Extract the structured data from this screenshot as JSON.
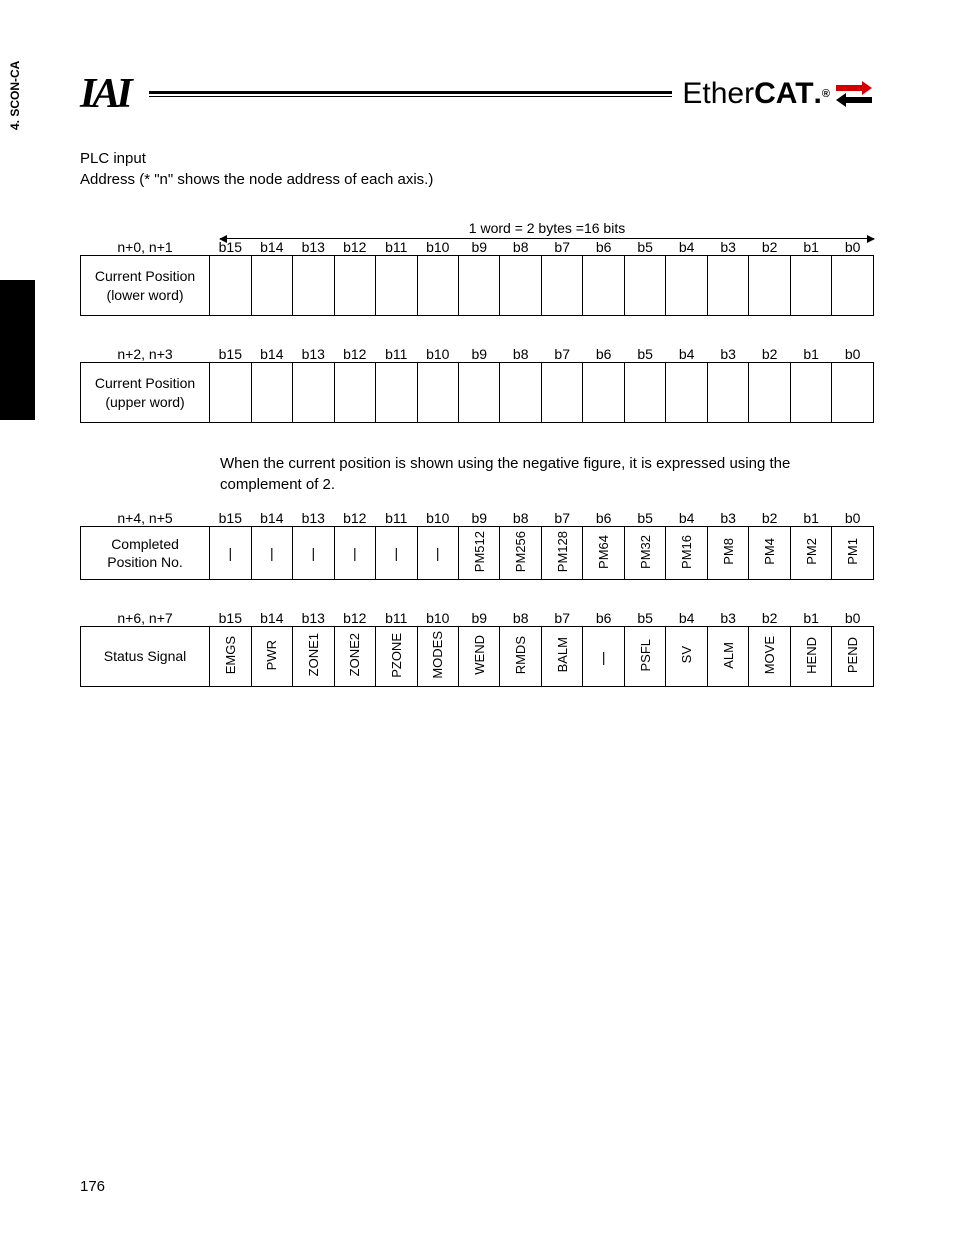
{
  "side_tab": "4. SCON-CA",
  "logos": {
    "iai": "IAI",
    "ethercat_thin": "Ether",
    "ethercat_bold": "CAT",
    "ethercat_dot": "."
  },
  "intro": {
    "line1": "PLC input",
    "line2": "Address (* \"n\" shows the node address of each axis.)"
  },
  "word_caption": "1 word = 2 bytes =16 bits",
  "bits": [
    "b15",
    "b14",
    "b13",
    "b12",
    "b11",
    "b10",
    "b9",
    "b8",
    "b7",
    "b6",
    "b5",
    "b4",
    "b3",
    "b2",
    "b1",
    "b0"
  ],
  "tables": [
    {
      "addr": "n+0, n+1",
      "row_label": "Current Position\n(lower word)",
      "cells": [
        "",
        "",
        "",
        "",
        "",
        "",
        "",
        "",
        "",
        "",
        "",
        "",
        "",
        "",
        "",
        ""
      ],
      "height": "tall",
      "show_arrow": true
    },
    {
      "addr": "n+2, n+3",
      "row_label": "Current Position\n(upper word)",
      "cells": [
        "",
        "",
        "",
        "",
        "",
        "",
        "",
        "",
        "",
        "",
        "",
        "",
        "",
        "",
        "",
        ""
      ],
      "height": "tall"
    }
  ],
  "mid_note": "When the current position is shown using the negative figure, it is expressed using the complement of 2.",
  "tables2": [
    {
      "addr": "n+4, n+5",
      "row_label": "Completed\nPosition No.",
      "cells": [
        "|",
        "|",
        "|",
        "|",
        "|",
        "|",
        "PM512",
        "PM256",
        "PM128",
        "PM64",
        "PM32",
        "PM16",
        "PM8",
        "PM4",
        "PM2",
        "PM1"
      ],
      "vertical_from": 6,
      "height": "short"
    },
    {
      "addr": "n+6, n+7",
      "row_label": "Status Signal",
      "cells": [
        "EMGS",
        "PWR",
        "ZONE1",
        "ZONE2",
        "PZONE",
        "MODES",
        "WEND",
        "RMDS",
        "BALM",
        "|",
        "PSFL",
        "SV",
        "ALM",
        "MOVE",
        "HEND",
        "PEND"
      ],
      "vertical_from": 0,
      "height": "short"
    }
  ],
  "page_number": "176",
  "colors": {
    "arrow_red": "#d40000"
  }
}
